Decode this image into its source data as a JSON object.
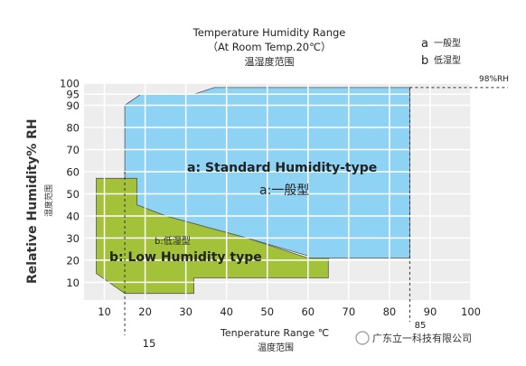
{
  "chart_data": {
    "type": "area",
    "title": "Temperature Humidity Range",
    "subtitle": "（At Room Temp.20℃）",
    "subtitle_cn": "温湿度范围",
    "xlabel": "Tenperature Range ℃",
    "xlabel_cn": "温度范围",
    "ylabel": "Relative Humidity% RH",
    "ylabel_cn": "湿度范围",
    "xlim": [
      5,
      100
    ],
    "ylim": [
      2,
      100
    ],
    "x_ticks": [
      10,
      20,
      30,
      40,
      50,
      60,
      70,
      80,
      90,
      100
    ],
    "y_ticks": [
      10,
      20,
      30,
      40,
      50,
      60,
      70,
      80,
      90,
      95,
      100
    ],
    "grid": true,
    "legend": [
      {
        "key": "a",
        "label": "一般型"
      },
      {
        "key": "b",
        "label": "低湿型"
      }
    ],
    "series": [
      {
        "name": "a: Standard Humidity-type",
        "name_cn": "a:一般型",
        "color": "#8fd3f4",
        "points": [
          [
            15,
            90
          ],
          [
            15,
            57
          ],
          [
            18,
            45
          ],
          [
            25,
            40
          ],
          [
            45,
            30
          ],
          [
            60,
            22
          ],
          [
            60,
            21
          ],
          [
            85,
            21
          ],
          [
            85,
            98
          ],
          [
            37,
            98
          ],
          [
            32,
            95
          ],
          [
            19,
            95
          ],
          [
            15,
            90
          ]
        ]
      },
      {
        "name": "b: Low Humidity  type",
        "name_cn": "b:低湿型",
        "color": "#a3c23a",
        "points": [
          [
            8,
            57
          ],
          [
            8,
            14
          ],
          [
            15,
            5
          ],
          [
            32,
            5
          ],
          [
            32,
            12
          ],
          [
            65,
            12
          ],
          [
            65,
            21
          ],
          [
            60,
            21
          ],
          [
            45,
            30
          ],
          [
            25,
            40
          ],
          [
            18,
            45
          ],
          [
            18,
            57
          ],
          [
            8,
            57
          ]
        ]
      }
    ],
    "annotations": [
      {
        "text": "98%RH",
        "x": 85,
        "y": 98
      },
      {
        "text": "15",
        "x": 15
      },
      {
        "text": "85",
        "x": 85
      }
    ],
    "watermark": "广东立一科技有限公司"
  }
}
